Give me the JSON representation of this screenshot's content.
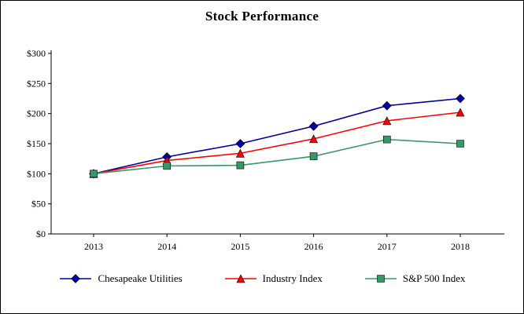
{
  "chart_data": {
    "type": "line",
    "title": "Stock Performance",
    "categories": [
      "2013",
      "2014",
      "2015",
      "2016",
      "2017",
      "2018"
    ],
    "series": [
      {
        "name": "Chesapeake Utilities",
        "color": "#0000A0",
        "marker": "diamond",
        "values": [
          100,
          128,
          150,
          179,
          213,
          225
        ]
      },
      {
        "name": "Industry Index",
        "color": "#FF0000",
        "marker": "triangle",
        "values": [
          100,
          122,
          134,
          158,
          188,
          202
        ]
      },
      {
        "name": "S&P 500 Index",
        "color": "#339966",
        "marker": "square",
        "values": [
          100,
          113,
          114,
          129,
          157,
          150
        ]
      }
    ],
    "xlabel": "",
    "ylabel": "",
    "ylim": [
      0,
      300
    ],
    "ytick_step": 50,
    "y_tick_labels": [
      "$0",
      "$50",
      "$100",
      "$150",
      "$200",
      "$250",
      "$300"
    ],
    "grid": false,
    "legend_position": "bottom"
  }
}
